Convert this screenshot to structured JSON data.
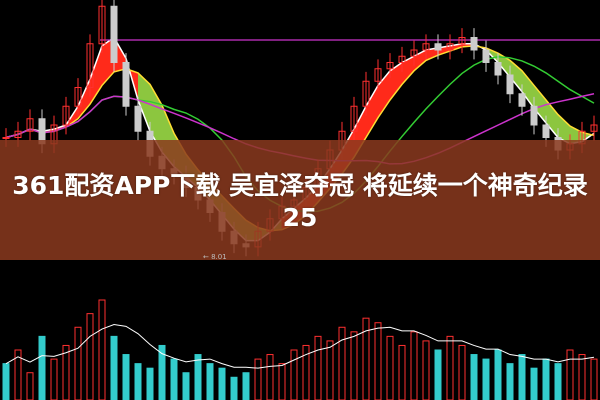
{
  "headline": {
    "line1": "361配资APP下载 吴宜泽夺冠 将延续一个神奇纪录",
    "line2": "25"
  },
  "chart_data": {
    "type": "candlestick",
    "low_label": "← 8.01",
    "closes": [
      9.8,
      9.9,
      10.1,
      9.7,
      10.0,
      10.3,
      10.6,
      11.3,
      11.9,
      11.0,
      10.3,
      9.9,
      9.5,
      9.3,
      9.2,
      9.0,
      8.8,
      8.6,
      8.3,
      8.1,
      8.05,
      8.3,
      8.5,
      8.7,
      8.8,
      9.0,
      9.3,
      9.6,
      9.9,
      10.3,
      10.7,
      10.9,
      11.0,
      11.1,
      11.2,
      11.3,
      11.2,
      11.3,
      11.4,
      11.2,
      11.0,
      10.8,
      10.5,
      10.3,
      10.0,
      9.8,
      9.6,
      9.7,
      9.9,
      10.0
    ],
    "volumes": [
      40,
      55,
      30,
      70,
      45,
      60,
      80,
      95,
      110,
      70,
      50,
      40,
      35,
      60,
      45,
      30,
      50,
      40,
      35,
      25,
      30,
      45,
      50,
      40,
      55,
      60,
      70,
      65,
      80,
      75,
      90,
      85,
      70,
      60,
      75,
      65,
      55,
      70,
      60,
      50,
      45,
      55,
      40,
      50,
      35,
      45,
      40,
      55,
      50,
      45
    ],
    "colors": {
      "up": "#ff3030",
      "down": "#cccccc",
      "ma_fast": "#ffffff",
      "ma_mid": "#ffdd33",
      "ma_slow": "#33cc33",
      "ma_long": "#cc33cc",
      "band_up": "#ff2a1a",
      "band_down": "#8cc63f",
      "overlay": "#8b3a1e"
    }
  }
}
